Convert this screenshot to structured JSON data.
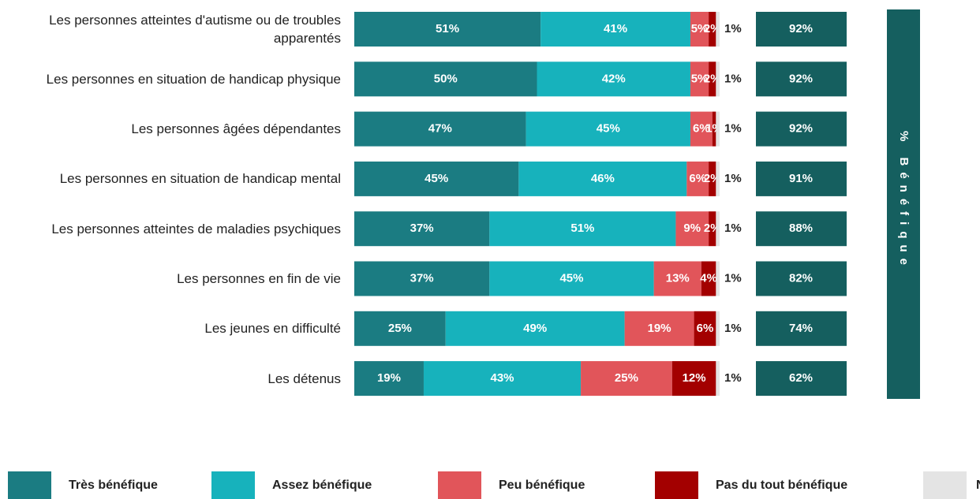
{
  "chart_data": {
    "type": "stacked-bar-horizontal",
    "categories": [
      "Les personnes atteintes d'autisme ou de troubles apparentés",
      "Les personnes en situation de handicap physique",
      "Les personnes âgées dépendantes",
      "Les personnes en situation de handicap mental",
      "Les personnes atteintes de maladies psychiques",
      "Les personnes en fin de vie",
      "Les jeunes en difficulté",
      "Les détenus"
    ],
    "xlim": [
      0,
      100
    ],
    "series": [
      {
        "name": "Très bénéfique",
        "color": "#1b7c82",
        "values": [
          51,
          50,
          47,
          45,
          37,
          37,
          25,
          19
        ],
        "value_labels": [
          "51%",
          "50%",
          "47%",
          "45%",
          "37%",
          "37%",
          "25%",
          "19%"
        ]
      },
      {
        "name": "Assez bénéfique",
        "color": "#17b2bc",
        "values": [
          41,
          42,
          45,
          46,
          51,
          45,
          49,
          43
        ],
        "value_labels": [
          "41%",
          "42%",
          "45%",
          "46%",
          "51%",
          "45%",
          "49%",
          "43%"
        ]
      },
      {
        "name": "Peu bénéfique",
        "color": "#e1555a",
        "values": [
          5,
          5,
          6,
          6,
          9,
          13,
          19,
          25
        ],
        "value_labels": [
          "5%",
          "5%",
          "6%",
          "6%",
          "9%",
          "13%",
          "19%",
          "25%"
        ]
      },
      {
        "name": "Pas du tout bénéfique",
        "color": "#a30000",
        "values": [
          2,
          2,
          1,
          2,
          2,
          4,
          6,
          12
        ],
        "value_labels": [
          "2%",
          "2%",
          "1%",
          "2%",
          "2%",
          "4%",
          "6%",
          "12%"
        ]
      },
      {
        "name": "NSP",
        "color": "#e4e4e4",
        "values": [
          1,
          1,
          1,
          1,
          1,
          1,
          1,
          1
        ],
        "value_labels": [
          "1%",
          "1%",
          "1%",
          "1%",
          "1%",
          "1%",
          "1%",
          "1%"
        ]
      }
    ],
    "benefit": {
      "title": "% Bénéfique",
      "color": "#155f5f",
      "values": [
        92,
        92,
        92,
        91,
        88,
        82,
        74,
        62
      ],
      "value_labels": [
        "92%",
        "92%",
        "92%",
        "91%",
        "88%",
        "82%",
        "74%",
        "62%"
      ]
    }
  }
}
